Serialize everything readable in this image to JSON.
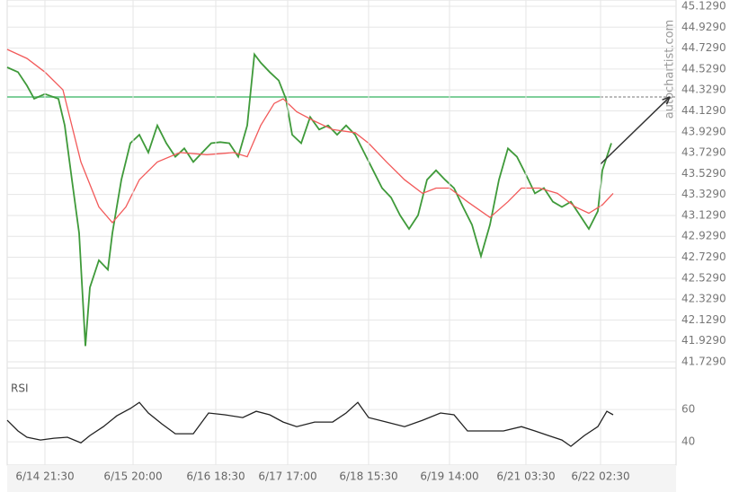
{
  "chart_data": [
    {
      "type": "line",
      "watermark": "autochartist.com",
      "xlim": [
        0,
        744
      ],
      "ylim": [
        41.669,
        45.189
      ],
      "yticks": [
        {
          "value": 45.129,
          "label": "45.1290"
        },
        {
          "value": 44.929,
          "label": "44.9290"
        },
        {
          "value": 44.729,
          "label": "44.7290"
        },
        {
          "value": 44.529,
          "label": "44.5290"
        },
        {
          "value": 44.329,
          "label": "44.3290"
        },
        {
          "value": 44.129,
          "label": "44.1290"
        },
        {
          "value": 43.929,
          "label": "43.9290"
        },
        {
          "value": 43.729,
          "label": "43.7290"
        },
        {
          "value": 43.529,
          "label": "43.5290"
        },
        {
          "value": 43.329,
          "label": "43.3290"
        },
        {
          "value": 43.129,
          "label": "43.1290"
        },
        {
          "value": 42.929,
          "label": "42.9290"
        },
        {
          "value": 42.729,
          "label": "42.7290"
        },
        {
          "value": 42.529,
          "label": "42.5290"
        },
        {
          "value": 42.329,
          "label": "42.3290"
        },
        {
          "value": 42.129,
          "label": "42.1290"
        },
        {
          "value": 41.929,
          "label": "41.9290"
        },
        {
          "value": 41.729,
          "label": "41.7290"
        }
      ],
      "grid": true,
      "series": [
        {
          "color": "#3f9a3a",
          "x": [
            0,
            12,
            22,
            30,
            42,
            57,
            64,
            72,
            80,
            87,
            92,
            102,
            112,
            117,
            127,
            137,
            147,
            157,
            167,
            177,
            187,
            197,
            207,
            217,
            227,
            237,
            247,
            257,
            267,
            275,
            282,
            292,
            302,
            310,
            317,
            327,
            337,
            347,
            357,
            367,
            377,
            387,
            397,
            407,
            417,
            427,
            437,
            447,
            457,
            467,
            477,
            487,
            497,
            507,
            517,
            527,
            537,
            547,
            557,
            567,
            577,
            587,
            597,
            607,
            617,
            627,
            637,
            647,
            657,
            662,
            672
          ],
          "values": [
            44.545,
            44.5,
            44.37,
            44.245,
            44.29,
            44.245,
            43.99,
            43.47,
            42.96,
            41.88,
            42.44,
            42.7,
            42.61,
            42.96,
            43.47,
            43.82,
            43.9,
            43.73,
            43.99,
            43.82,
            43.69,
            43.77,
            43.64,
            43.73,
            43.82,
            43.83,
            43.82,
            43.69,
            43.99,
            44.67,
            44.59,
            44.5,
            44.42,
            44.245,
            43.9,
            43.82,
            44.07,
            43.95,
            43.99,
            43.9,
            43.99,
            43.9,
            43.73,
            43.56,
            43.39,
            43.3,
            43.13,
            43.0,
            43.13,
            43.47,
            43.56,
            43.47,
            43.39,
            43.21,
            43.04,
            42.74,
            43.04,
            43.47,
            43.77,
            43.69,
            43.52,
            43.34,
            43.39,
            43.26,
            43.21,
            43.26,
            43.13,
            43.0,
            43.17,
            43.56,
            43.82
          ]
        },
        {
          "color": "#f25a5a",
          "x": [
            0,
            22,
            42,
            62,
            82,
            102,
            117,
            132,
            147,
            167,
            192,
            222,
            252,
            267,
            282,
            297,
            307,
            322,
            342,
            362,
            387,
            402,
            422,
            442,
            462,
            477,
            492,
            512,
            537,
            557,
            572,
            592,
            612,
            632,
            647,
            662,
            674
          ],
          "values": [
            44.717,
            44.63,
            44.5,
            44.33,
            43.64,
            43.21,
            43.06,
            43.21,
            43.47,
            43.64,
            43.73,
            43.71,
            43.73,
            43.69,
            43.99,
            44.2,
            44.245,
            44.12,
            44.03,
            43.95,
            43.92,
            43.82,
            43.64,
            43.47,
            43.34,
            43.39,
            43.39,
            43.26,
            43.11,
            43.26,
            43.39,
            43.39,
            43.34,
            43.21,
            43.15,
            43.23,
            43.34
          ]
        }
      ],
      "level": 44.262,
      "level_color": "#7fcf9a",
      "forecast": {
        "x": [
          660,
          737
        ],
        "values": [
          43.62,
          44.262
        ],
        "color": "#333333"
      },
      "marker_x": 660
    },
    {
      "type": "line",
      "title": "RSI",
      "xlim": [
        0,
        744
      ],
      "ylim": [
        25.6,
        85.6
      ],
      "yticks": [
        40,
        60
      ],
      "grid": true,
      "xticks": [
        {
          "value": 42,
          "label": "6/14 21:30"
        },
        {
          "value": 140,
          "label": "6/15 20:00"
        },
        {
          "value": 232,
          "label": "6/16 18:30"
        },
        {
          "value": 312,
          "label": "6/17 17:00"
        },
        {
          "value": 402,
          "label": "6/18 15:30"
        },
        {
          "value": 492,
          "label": "6/19 14:00"
        },
        {
          "value": 577,
          "label": "6/21 03:30"
        },
        {
          "value": 660,
          "label": "6/22 02:30"
        }
      ],
      "series": [
        {
          "color": "#222222",
          "x": [
            0,
            12,
            22,
            37,
            52,
            67,
            82,
            92,
            107,
            122,
            137,
            147,
            157,
            172,
            187,
            207,
            224,
            242,
            262,
            277,
            292,
            307,
            322,
            342,
            362,
            377,
            390,
            402,
            422,
            442,
            462,
            482,
            497,
            512,
            532,
            552,
            572,
            587,
            602,
            617,
            627,
            642,
            657,
            667,
            674
          ],
          "values": [
            53.3,
            46.7,
            42.8,
            41.1,
            42.2,
            42.8,
            39.4,
            43.9,
            49.4,
            56.1,
            60.6,
            64.4,
            57.8,
            51.1,
            45.0,
            45.0,
            57.8,
            56.7,
            55.0,
            58.9,
            56.7,
            52.2,
            49.4,
            52.2,
            52.2,
            57.8,
            64.4,
            55.0,
            52.2,
            49.4,
            53.3,
            57.8,
            56.7,
            46.7,
            46.7,
            46.7,
            49.4,
            46.7,
            43.9,
            41.1,
            37.2,
            43.9,
            49.4,
            58.9,
            56.7
          ]
        }
      ]
    }
  ]
}
